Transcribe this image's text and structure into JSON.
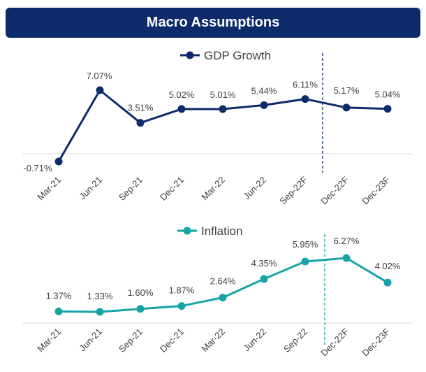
{
  "header": {
    "title": "Macro Assumptions"
  },
  "chart_data": [
    {
      "type": "line",
      "legend": "GDP Growth",
      "color": "#0d2b6b",
      "categories": [
        "Mar-21",
        "Jun-21",
        "Sep-21",
        "Dec-21",
        "Mar-22",
        "Jun-22",
        "Sep-22F",
        "Dec-22F",
        "Dec-23F"
      ],
      "series": [
        {
          "name": "GDP Growth",
          "values": [
            -0.71,
            7.07,
            3.51,
            5.02,
            5.01,
            5.44,
            6.11,
            5.17,
            5.04
          ]
        }
      ],
      "data_labels": [
        "-0.71%",
        "7.07%",
        "3.51%",
        "5.02%",
        "5.01%",
        "5.44%",
        "6.11%",
        "5.17%",
        "5.04%"
      ],
      "forecast_divider_after": "Sep-22F",
      "grid": false
    },
    {
      "type": "line",
      "legend": "Inflation",
      "color": "#17a4a9",
      "categories": [
        "Mar-21",
        "Jun-21",
        "Sep-21",
        "Dec-21",
        "Mar-22",
        "Jun-22",
        "Sep-22",
        "Dec-22F",
        "Dec-23F"
      ],
      "series": [
        {
          "name": "Inflation",
          "values": [
            1.37,
            1.33,
            1.6,
            1.87,
            2.64,
            4.35,
            5.95,
            6.27,
            4.02
          ]
        }
      ],
      "data_labels": [
        "1.37%",
        "1.33%",
        "1.60%",
        "1.87%",
        "2.64%",
        "4.35%",
        "5.95%",
        "6.27%",
        "4.02%"
      ],
      "forecast_divider_after": "Sep-22",
      "grid": false
    }
  ]
}
